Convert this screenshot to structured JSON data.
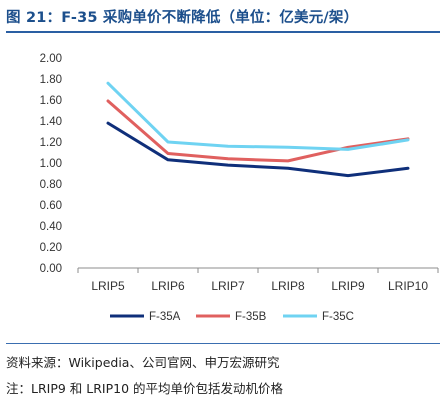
{
  "title": "图 21：F-35 采购单价不断降低（单位：亿美元/架）",
  "source": "资料来源：Wikipedia、公司官网、申万宏源研究",
  "footnote": "注：LRIP9 和 LRIP10 的平均单价包括发动机价格",
  "chart_data": {
    "type": "line",
    "title": "图 21：F-35 采购单价不断降低（单位：亿美元/架）",
    "categories": [
      "LRIP5",
      "LRIP6",
      "LRIP7",
      "LRIP8",
      "LRIP9",
      "LRIP10"
    ],
    "ylim": [
      0,
      2.0
    ],
    "yticks": [
      "0.00",
      "0.20",
      "0.40",
      "0.60",
      "0.80",
      "1.00",
      "1.20",
      "1.40",
      "1.60",
      "1.80",
      "2.00"
    ],
    "grid": false,
    "legend": "bottom",
    "series": [
      {
        "name": "F-35A",
        "color": "#0f2f7a",
        "values": [
          1.38,
          1.03,
          0.98,
          0.95,
          0.88,
          0.95
        ]
      },
      {
        "name": "F-35B",
        "color": "#e0605f",
        "values": [
          1.59,
          1.09,
          1.04,
          1.02,
          1.15,
          1.23
        ]
      },
      {
        "name": "F-35C",
        "color": "#6fd3f2",
        "values": [
          1.76,
          1.2,
          1.16,
          1.15,
          1.13,
          1.22
        ]
      }
    ]
  }
}
